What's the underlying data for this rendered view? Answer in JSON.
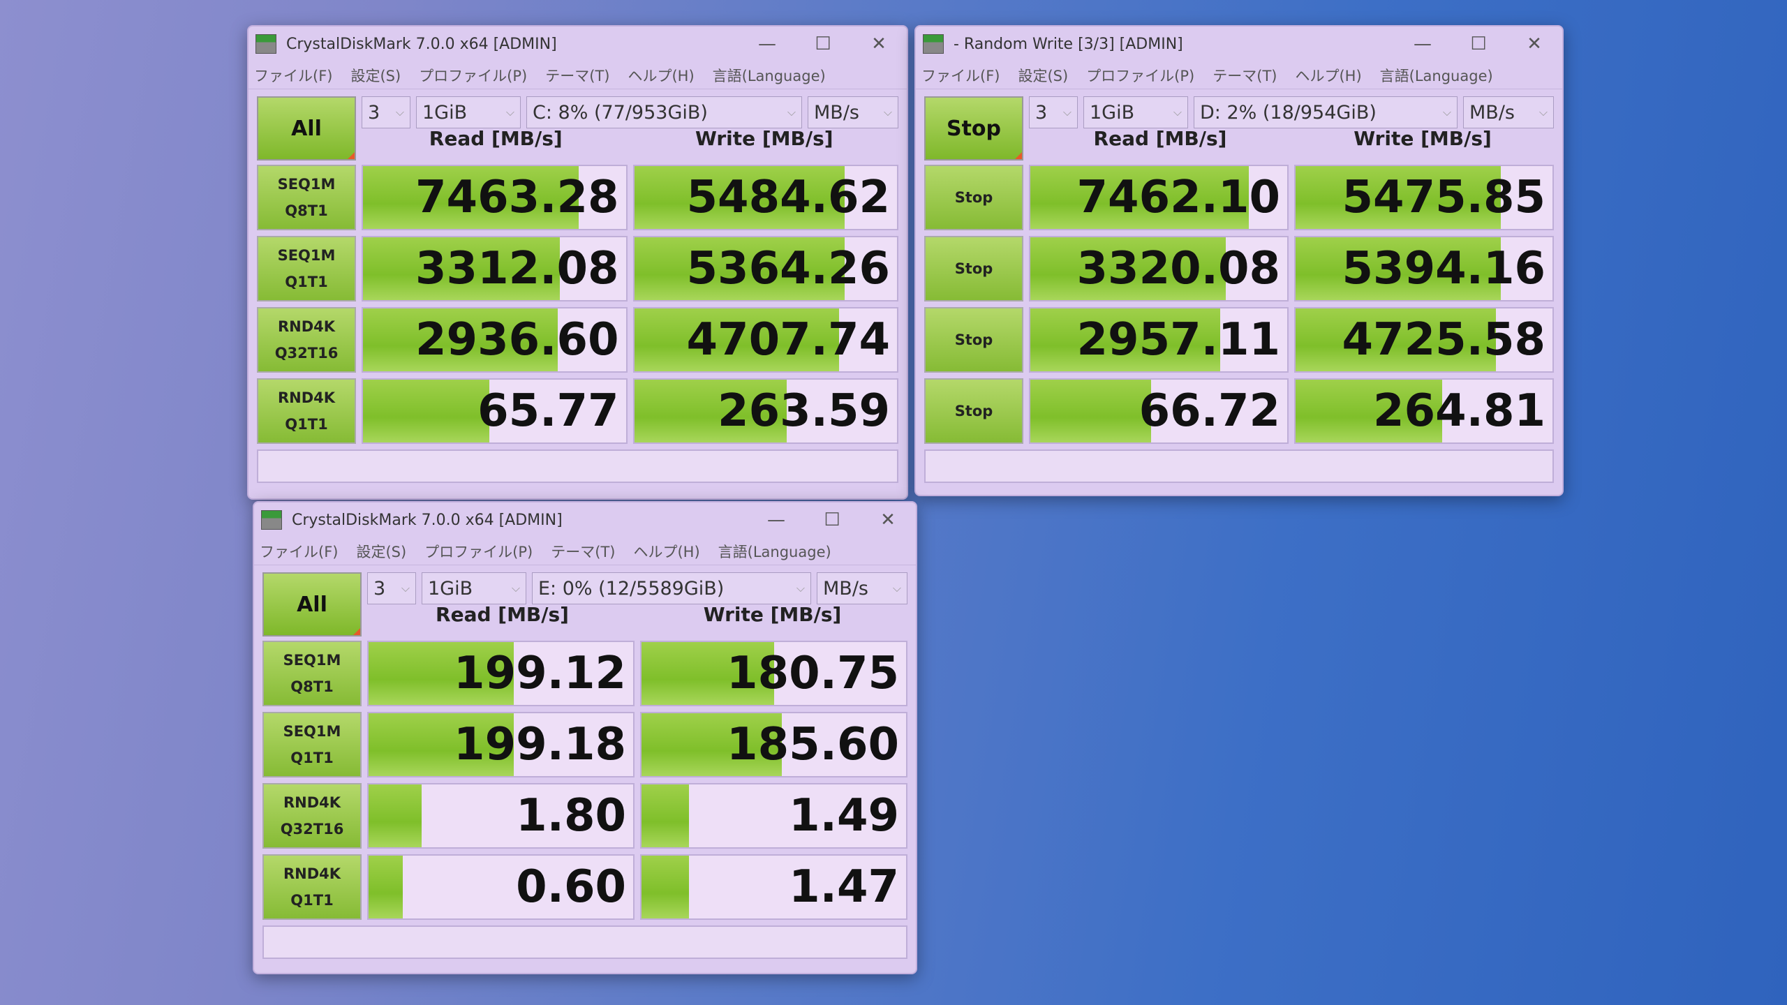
{
  "colors": {
    "bar": "#8cc63a",
    "window": "#dccbf0",
    "button": "#9ccc4c"
  },
  "menu": [
    "ファイル(F)",
    "設定(S)",
    "プロファイル(P)",
    "テーマ(T)",
    "ヘルプ(H)",
    "言語(Language)"
  ],
  "headers": {
    "read": "Read [MB/s]",
    "write": "Write [MB/s]"
  },
  "window_controls": {
    "minimize": "—",
    "maximize": "☐",
    "close": "✕"
  },
  "windows": [
    {
      "title": "CrystalDiskMark 7.0.0 x64 [ADMIN]",
      "main_button": "All",
      "count": "3",
      "size": "1GiB",
      "drive": "C: 8% (77/953GiB)",
      "unit": "MB/s",
      "rows": [
        {
          "label": [
            "SEQ1M",
            "Q8T1"
          ],
          "read": "7463.28",
          "write": "5484.62",
          "read_fill": 0.82,
          "write_fill": 0.8
        },
        {
          "label": [
            "SEQ1M",
            "Q1T1"
          ],
          "read": "3312.08",
          "write": "5364.26",
          "read_fill": 0.75,
          "write_fill": 0.8
        },
        {
          "label": [
            "RND4K",
            "Q32T16"
          ],
          "read": "2936.60",
          "write": "4707.74",
          "read_fill": 0.74,
          "write_fill": 0.78
        },
        {
          "label": [
            "RND4K",
            "Q1T1"
          ],
          "read": "65.77",
          "write": "263.59",
          "read_fill": 0.48,
          "write_fill": 0.58
        }
      ]
    },
    {
      "title": "- Random Write [3/3] [ADMIN]",
      "main_button": "Stop",
      "count": "3",
      "size": "1GiB",
      "drive": "D: 2% (18/954GiB)",
      "unit": "MB/s",
      "rows": [
        {
          "label": [
            "Stop"
          ],
          "read": "7462.10",
          "write": "5475.85",
          "read_fill": 0.85,
          "write_fill": 0.8
        },
        {
          "label": [
            "Stop"
          ],
          "read": "3320.08",
          "write": "5394.16",
          "read_fill": 0.76,
          "write_fill": 0.8
        },
        {
          "label": [
            "Stop"
          ],
          "read": "2957.11",
          "write": "4725.58",
          "read_fill": 0.74,
          "write_fill": 0.78
        },
        {
          "label": [
            "Stop"
          ],
          "read": "66.72",
          "write": "264.81",
          "read_fill": 0.47,
          "write_fill": 0.57
        }
      ]
    },
    {
      "title": "CrystalDiskMark 7.0.0 x64 [ADMIN]",
      "main_button": "All",
      "count": "3",
      "size": "1GiB",
      "drive": "E: 0% (12/5589GiB)",
      "unit": "MB/s",
      "rows": [
        {
          "label": [
            "SEQ1M",
            "Q8T1"
          ],
          "read": "199.12",
          "write": "180.75",
          "read_fill": 0.55,
          "write_fill": 0.5
        },
        {
          "label": [
            "SEQ1M",
            "Q1T1"
          ],
          "read": "199.18",
          "write": "185.60",
          "read_fill": 0.55,
          "write_fill": 0.53
        },
        {
          "label": [
            "RND4K",
            "Q32T16"
          ],
          "read": "1.80",
          "write": "1.49",
          "read_fill": 0.2,
          "write_fill": 0.18
        },
        {
          "label": [
            "RND4K",
            "Q1T1"
          ],
          "read": "0.60",
          "write": "1.47",
          "read_fill": 0.13,
          "write_fill": 0.18
        }
      ]
    }
  ]
}
